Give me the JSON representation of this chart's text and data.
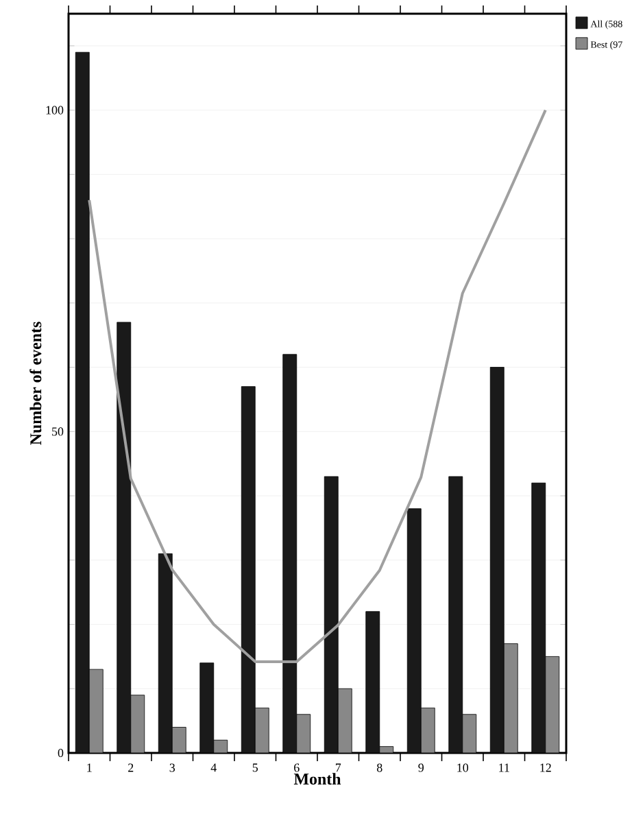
{
  "chart_data": {
    "type": "bar",
    "xlabel": "Month",
    "ylabel": "Number of events",
    "categories": [
      "1",
      "2",
      "3",
      "4",
      "5",
      "6",
      "7",
      "8",
      "9",
      "10",
      "11",
      "12"
    ],
    "series": [
      {
        "name": "All (588",
        "color": "#1a1a1a",
        "values": [
          109,
          67,
          31,
          14,
          57,
          62,
          43,
          22,
          38,
          43,
          60,
          42
        ]
      },
      {
        "name": "Best (97",
        "color": "#888888",
        "values": [
          13,
          9,
          4,
          2,
          7,
          6,
          10,
          1,
          7,
          6,
          17,
          15
        ]
      },
      {
        "type": "line",
        "color": "#a0a0a0",
        "values": [
          86,
          42.7,
          28.5,
          20,
          14.2,
          14.2,
          19.9,
          28.4,
          42.9,
          71.5,
          85.5,
          100
        ]
      }
    ],
    "ylim": [
      0,
      115
    ],
    "yticks": [
      0,
      {
        "value": 10,
        "label": null
      },
      {
        "value": 20,
        "label": null
      },
      {
        "value": 30,
        "label": null
      },
      {
        "value": 40,
        "label": null
      },
      50,
      {
        "value": 60,
        "label": null
      },
      {
        "value": 70,
        "label": null
      },
      {
        "value": 80,
        "label": null
      },
      {
        "value": 90,
        "label": null
      },
      100,
      {
        "value": 110,
        "label": null
      }
    ],
    "grid": "y",
    "legend": "top right",
    "line_style": "solid",
    "marker": "none"
  }
}
